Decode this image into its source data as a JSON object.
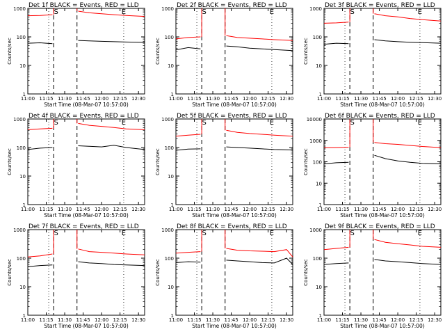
{
  "x_ticks": [
    "11:00",
    "11:15",
    "11:30",
    "11:45",
    "12:00",
    "12:15",
    "12:30"
  ],
  "y_ticks": [
    "1",
    "10",
    "100",
    "1000"
  ],
  "y_ticks_wide": [
    "1",
    "10",
    "100",
    "1000",
    "10000"
  ],
  "x_label": "Start Time (08-Mar-07 10:57:00)",
  "y_label": "Counts/sec",
  "s_marker": "S",
  "e_marker": "E",
  "colors": {
    "events": "#000000",
    "lld": "#ff0000",
    "axes": "#000000"
  },
  "chart_data": [
    {
      "type": "line",
      "detector": "1f",
      "title": "Det 1f BLACK = Events, RED = LLD",
      "x_range": [
        660,
        755
      ],
      "ylim": [
        1,
        1000
      ],
      "y_scale": "log",
      "s_time": 683,
      "e_time": 738,
      "dotted_times": [
        677,
        738
      ],
      "dashed_times": [
        681,
        700
      ],
      "gap": [
        681,
        700
      ],
      "series": [
        {
          "name": "BLACK = Events",
          "x": [
            660,
            670,
            680,
            701,
            710,
            720,
            730,
            740,
            755
          ],
          "values": [
            60,
            62,
            58,
            75,
            72,
            70,
            68,
            66,
            64
          ]
        },
        {
          "name": "RED = LLD",
          "x": [
            660,
            670,
            680,
            701,
            710,
            720,
            730,
            740,
            755
          ],
          "values": [
            550,
            560,
            600,
            800,
            700,
            650,
            600,
            560,
            520
          ]
        }
      ]
    },
    {
      "type": "line",
      "detector": "2f",
      "title": "Det 2f BLACK = Events, RED = LLD",
      "x_range": [
        660,
        755
      ],
      "ylim": [
        1,
        1000
      ],
      "y_scale": "log",
      "s_time": 683,
      "e_time": 738,
      "dotted_times": [
        677,
        738
      ],
      "dashed_times": [
        681,
        700
      ],
      "gap": [
        681,
        700
      ],
      "series": [
        {
          "name": "BLACK = Events",
          "x": [
            660,
            670,
            680,
            701,
            710,
            720,
            730,
            740,
            755
          ],
          "values": [
            35,
            42,
            38,
            48,
            45,
            40,
            38,
            36,
            33
          ]
        },
        {
          "name": "RED = LLD",
          "x": [
            660,
            670,
            680,
            701,
            710,
            720,
            730,
            740,
            755
          ],
          "values": [
            85,
            95,
            100,
            110,
            95,
            90,
            85,
            80,
            75
          ]
        }
      ]
    },
    {
      "type": "line",
      "detector": "3f",
      "title": "Det 3f BLACK = Events, RED = LLD",
      "x_range": [
        660,
        755
      ],
      "ylim": [
        1,
        1000
      ],
      "y_scale": "log",
      "s_time": 683,
      "e_time": 738,
      "dotted_times": [
        677,
        738
      ],
      "dashed_times": [
        681,
        700
      ],
      "gap": [
        681,
        700
      ],
      "series": [
        {
          "name": "BLACK = Events",
          "x": [
            660,
            670,
            680,
            701,
            710,
            720,
            730,
            740,
            755
          ],
          "values": [
            55,
            60,
            58,
            80,
            72,
            68,
            65,
            63,
            60
          ]
        },
        {
          "name": "RED = LLD",
          "x": [
            660,
            670,
            680,
            701,
            710,
            720,
            730,
            740,
            755
          ],
          "values": [
            300,
            310,
            330,
            650,
            550,
            500,
            440,
            400,
            360
          ]
        }
      ]
    },
    {
      "type": "line",
      "detector": "4f",
      "title": "Det 4f BLACK = Events, RED = LLD",
      "x_range": [
        660,
        755
      ],
      "ylim": [
        1,
        1000
      ],
      "y_scale": "log",
      "s_time": 683,
      "e_time": 738,
      "dotted_times": [
        677,
        738
      ],
      "dashed_times": [
        681,
        700
      ],
      "gap": [
        681,
        700
      ],
      "series": [
        {
          "name": "BLACK = Events",
          "x": [
            660,
            670,
            680,
            701,
            710,
            720,
            730,
            740,
            755
          ],
          "values": [
            85,
            95,
            100,
            115,
            110,
            105,
            120,
            100,
            85
          ]
        },
        {
          "name": "RED = LLD",
          "x": [
            660,
            670,
            680,
            701,
            710,
            720,
            730,
            740,
            755
          ],
          "values": [
            420,
            450,
            470,
            700,
            600,
            550,
            500,
            450,
            420
          ]
        }
      ]
    },
    {
      "type": "line",
      "detector": "5f",
      "title": "Det 5f BLACK = Events, RED = LLD",
      "x_range": [
        660,
        755
      ],
      "ylim": [
        1,
        1000
      ],
      "y_scale": "log",
      "s_time": 683,
      "e_time": 738,
      "dotted_times": [
        677,
        738
      ],
      "dashed_times": [
        681,
        700
      ],
      "gap": [
        681,
        700
      ],
      "series": [
        {
          "name": "BLACK = Events",
          "x": [
            660,
            670,
            680,
            701,
            710,
            720,
            730,
            740,
            755
          ],
          "values": [
            80,
            88,
            90,
            105,
            100,
            95,
            90,
            85,
            82
          ]
        },
        {
          "name": "RED = LLD",
          "x": [
            660,
            670,
            680,
            701,
            710,
            720,
            730,
            740,
            755
          ],
          "values": [
            250,
            270,
            290,
            400,
            340,
            310,
            290,
            270,
            250
          ]
        }
      ]
    },
    {
      "type": "line",
      "detector": "6f",
      "title": "Det 6f BLACK = Events, RED = LLD",
      "x_range": [
        660,
        755
      ],
      "ylim": [
        1,
        10000
      ],
      "y_scale": "log",
      "s_time": 683,
      "e_time": 738,
      "dotted_times": [
        677,
        738
      ],
      "dashed_times": [
        681,
        700
      ],
      "gap": [
        681,
        700
      ],
      "series": [
        {
          "name": "BLACK = Events",
          "x": [
            660,
            670,
            680,
            701,
            710,
            720,
            730,
            740,
            755
          ],
          "values": [
            80,
            90,
            95,
            200,
            140,
            110,
            95,
            85,
            80
          ]
        },
        {
          "name": "RED = LLD",
          "x": [
            660,
            670,
            680,
            701,
            710,
            720,
            730,
            740,
            755
          ],
          "values": [
            450,
            460,
            480,
            800,
            700,
            650,
            580,
            520,
            460
          ]
        }
      ]
    },
    {
      "type": "line",
      "detector": "7f",
      "title": "Det 7f BLACK = Events, RED = LLD",
      "x_range": [
        660,
        755
      ],
      "ylim": [
        1,
        1000
      ],
      "y_scale": "log",
      "s_time": 683,
      "e_time": 738,
      "dotted_times": [
        677,
        738
      ],
      "dashed_times": [
        681,
        700
      ],
      "gap": [
        681,
        700
      ],
      "series": [
        {
          "name": "BLACK = Events",
          "x": [
            660,
            670,
            680,
            701,
            710,
            720,
            730,
            740,
            755
          ],
          "values": [
            50,
            55,
            58,
            75,
            68,
            65,
            60,
            58,
            55
          ]
        },
        {
          "name": "RED = LLD",
          "x": [
            660,
            670,
            680,
            701,
            710,
            720,
            730,
            740,
            755
          ],
          "values": [
            110,
            120,
            140,
            210,
            170,
            160,
            150,
            140,
            130
          ]
        }
      ]
    },
    {
      "type": "line",
      "detector": "8f",
      "title": "Det 8f BLACK = Events, RED = LLD",
      "x_range": [
        660,
        755
      ],
      "ylim": [
        1,
        1000
      ],
      "y_scale": "log",
      "s_time": 683,
      "e_time": 738,
      "dotted_times": [
        677,
        738
      ],
      "dashed_times": [
        681,
        700
      ],
      "gap": [
        681,
        700
      ],
      "series": [
        {
          "name": "BLACK = Events",
          "x": [
            660,
            670,
            680,
            701,
            710,
            720,
            730,
            740,
            750,
            755
          ],
          "values": [
            70,
            75,
            72,
            85,
            80,
            75,
            70,
            68,
            100,
            60
          ]
        },
        {
          "name": "RED = LLD",
          "x": [
            660,
            670,
            680,
            701,
            710,
            720,
            730,
            740,
            750,
            755
          ],
          "values": [
            150,
            160,
            170,
            220,
            190,
            180,
            175,
            170,
            200,
            110
          ]
        }
      ]
    },
    {
      "type": "line",
      "detector": "9f",
      "title": "Det 9f BLACK = Events, RED = LLD",
      "x_range": [
        660,
        755
      ],
      "ylim": [
        1,
        1000
      ],
      "y_scale": "log",
      "s_time": 683,
      "e_time": 738,
      "dotted_times": [
        677,
        738
      ],
      "dashed_times": [
        681,
        700
      ],
      "gap": [
        681,
        700
      ],
      "series": [
        {
          "name": "BLACK = Events",
          "x": [
            660,
            670,
            680,
            701,
            710,
            720,
            730,
            740,
            755
          ],
          "values": [
            60,
            65,
            68,
            90,
            80,
            75,
            70,
            65,
            60
          ]
        },
        {
          "name": "RED = LLD",
          "x": [
            660,
            670,
            680,
            701,
            710,
            720,
            730,
            740,
            755
          ],
          "values": [
            200,
            220,
            240,
            450,
            360,
            320,
            290,
            260,
            240
          ]
        }
      ]
    }
  ]
}
